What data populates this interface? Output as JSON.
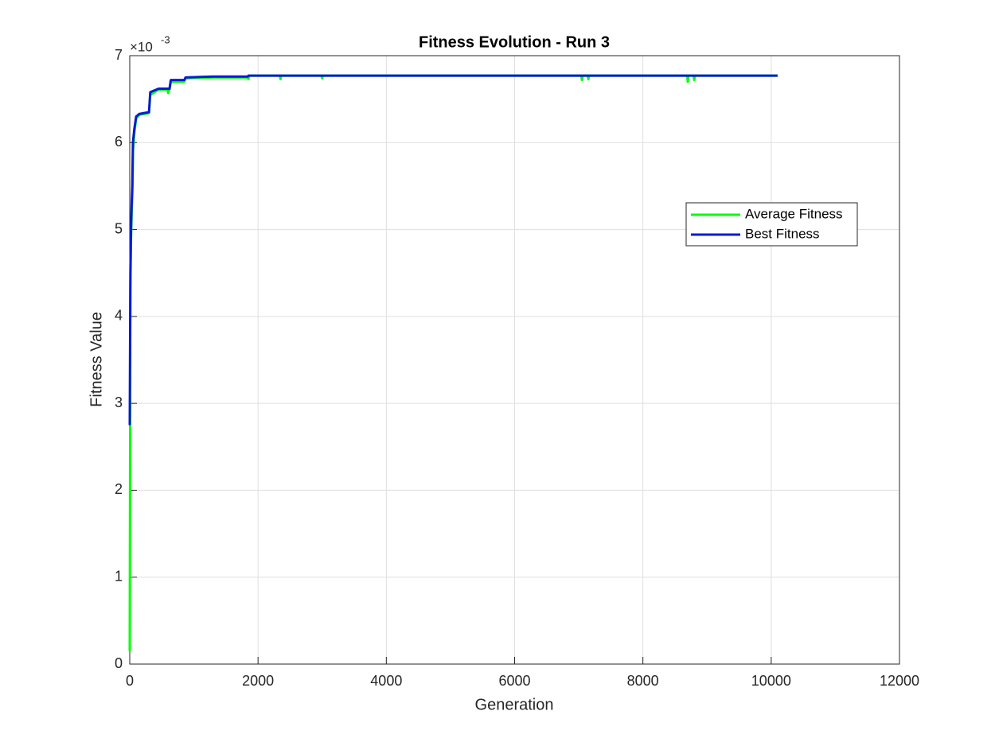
{
  "chart_data": {
    "type": "line",
    "title": "Fitness Evolution - Run 3",
    "xlabel": "Generation",
    "ylabel": "Fitness Value",
    "y_multiplier": {
      "base": "×10",
      "exponent": "-3"
    },
    "x": [
      0,
      10,
      20,
      30,
      40,
      50,
      70,
      100,
      150,
      300,
      320,
      450,
      590,
      600,
      610,
      620,
      640,
      850,
      870,
      1300,
      1840,
      1850,
      1860,
      2340,
      2350,
      2360,
      2990,
      3000,
      3010,
      7040,
      7050,
      7060,
      7140,
      7150,
      7160,
      8690,
      8700,
      8710,
      8790,
      8800,
      8810,
      10100
    ],
    "series": [
      {
        "name": "Average Fitness",
        "color": "#00ff00",
        "values": [
          0.00015,
          0.0043,
          0.0049,
          0.0052,
          0.0054,
          0.0059,
          0.0061,
          0.00628,
          0.00632,
          0.00634,
          0.00655,
          0.00661,
          0.00661,
          0.00657,
          0.00661,
          0.00661,
          0.0067,
          0.0067,
          0.00674,
          0.00675,
          0.00675,
          0.00673,
          0.00677,
          0.00677,
          0.00673,
          0.00677,
          0.00677,
          0.00674,
          0.00677,
          0.00677,
          0.00672,
          0.00677,
          0.00677,
          0.00673,
          0.00677,
          0.00677,
          0.0067,
          0.00677,
          0.00677,
          0.00672,
          0.00677,
          0.00677
        ]
      },
      {
        "name": "Best Fitness",
        "color": "#0a1ad6",
        "values": [
          0.00275,
          0.0045,
          0.005,
          0.0053,
          0.0055,
          0.006,
          0.00615,
          0.0063,
          0.00633,
          0.00635,
          0.00658,
          0.00662,
          0.00662,
          0.00662,
          0.00662,
          0.00662,
          0.00672,
          0.00672,
          0.00675,
          0.00676,
          0.00676,
          0.00677,
          0.00677,
          0.00677,
          0.00677,
          0.00677,
          0.00677,
          0.00677,
          0.00677,
          0.00677,
          0.00677,
          0.00677,
          0.00677,
          0.00677,
          0.00677,
          0.00677,
          0.00677,
          0.00677,
          0.00677,
          0.00677,
          0.00677,
          0.00677
        ]
      }
    ],
    "xlim": [
      0,
      12000
    ],
    "xticks": [
      0,
      2000,
      4000,
      6000,
      8000,
      10000,
      12000
    ],
    "ylim": [
      0,
      0.007
    ],
    "yticks": [
      0,
      {
        "value": 0.001,
        "label": "1"
      },
      {
        "value": 0.002,
        "label": "2"
      },
      {
        "value": 0.003,
        "label": "3"
      },
      {
        "value": 0.004,
        "label": "4"
      },
      {
        "value": 0.005,
        "label": "5"
      },
      {
        "value": 0.006,
        "label": "6"
      },
      {
        "value": 0.007,
        "label": "7"
      }
    ],
    "grid": true,
    "legend": "northeast"
  }
}
